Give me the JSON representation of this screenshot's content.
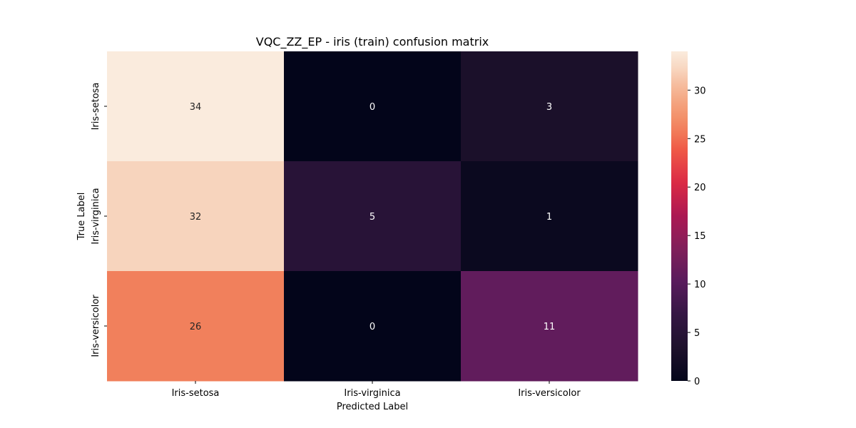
{
  "chart_data": {
    "type": "heatmap",
    "title": "VQC_ZZ_EP - iris (train) confusion matrix",
    "xlabel": "Predicted Label",
    "ylabel": "True Label",
    "x_categories": [
      "Iris-setosa",
      "Iris-virginica",
      "Iris-versicolor"
    ],
    "y_categories": [
      "Iris-setosa",
      "Iris-virginica",
      "Iris-versicolor"
    ],
    "matrix": [
      [
        34,
        0,
        3
      ],
      [
        32,
        5,
        1
      ],
      [
        26,
        0,
        11
      ]
    ],
    "colorbar": {
      "min": 0,
      "max": 34,
      "ticks": [
        0,
        5,
        10,
        15,
        20,
        25,
        30
      ]
    },
    "colormap": "rocket",
    "grid": false,
    "legend": "none"
  }
}
